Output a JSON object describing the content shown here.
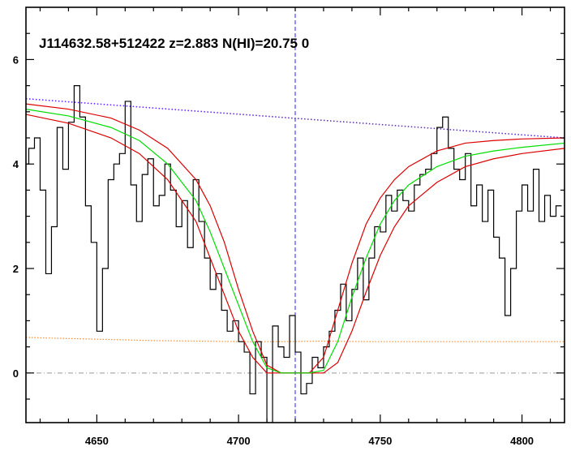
{
  "chart_data": {
    "type": "line",
    "title": "J114632.58+512422 z=2.883 N(HI)=20.75 0",
    "xlabel": "",
    "ylabel": "",
    "xlim": [
      4625,
      4815
    ],
    "ylim": [
      -0.95,
      7.0
    ],
    "x_ticks": [
      4650,
      4700,
      4750,
      4800
    ],
    "x_tick_labels": [
      "4650",
      "4700",
      "4750",
      "4800"
    ],
    "y_ticks": [
      0,
      2,
      4,
      6
    ],
    "y_tick_labels": [
      "0",
      "2",
      "4",
      "6"
    ],
    "grid": false,
    "legend": "none",
    "center_line_x": 4720,
    "colors": {
      "flux": "#000000",
      "model": "#00dd00",
      "model_bounds": "#dd0000",
      "continuum": "#5a1cff",
      "error": "#ff8a2a",
      "zero_line": "#999999",
      "center_line": "#2222ee"
    },
    "series": [
      {
        "name": "",
        "style": "steps",
        "x": [
          4625,
          4627,
          4629,
          4631,
          4633,
          4635,
          4637,
          4639,
          4641,
          4643,
          4645,
          4647,
          4649,
          4651,
          4653,
          4655,
          4657,
          4659,
          4661,
          4663,
          4665,
          4667,
          4669,
          4671,
          4673,
          4675,
          4677,
          4679,
          4681,
          4683,
          4685,
          4687,
          4689,
          4691,
          4693,
          4695,
          4697,
          4699,
          4701,
          4703,
          4705,
          4707,
          4709,
          4711,
          4713,
          4715,
          4717,
          4719,
          4721,
          4723,
          4725,
          4727,
          4729,
          4731,
          4733,
          4735,
          4737,
          4739,
          4741,
          4743,
          4745,
          4747,
          4749,
          4751,
          4753,
          4755,
          4757,
          4759,
          4761,
          4763,
          4765,
          4767,
          4769,
          4771,
          4773,
          4775,
          4777,
          4779,
          4781,
          4783,
          4785,
          4787,
          4789,
          4791,
          4793,
          4795,
          4797,
          4799,
          4801,
          4803,
          4805,
          4807,
          4809,
          4811,
          4813
        ],
        "y": [
          4.0,
          4.3,
          4.5,
          3.5,
          1.9,
          2.8,
          4.7,
          3.9,
          4.8,
          5.5,
          4.9,
          3.2,
          2.5,
          0.8,
          2.0,
          3.7,
          4.0,
          4.2,
          5.2,
          3.6,
          2.9,
          3.8,
          4.1,
          3.2,
          3.4,
          4.0,
          3.5,
          2.8,
          3.3,
          2.4,
          3.7,
          2.9,
          2.2,
          1.6,
          1.9,
          1.2,
          0.8,
          1.0,
          0.6,
          0.4,
          -0.4,
          0.6,
          0.3,
          -1.0,
          0.9,
          0.5,
          0.3,
          1.1,
          0.4,
          -0.4,
          -0.2,
          0.3,
          0.1,
          0.5,
          0.8,
          1.2,
          1.7,
          1.0,
          1.6,
          2.2,
          1.4,
          2.2,
          2.8,
          2.7,
          3.4,
          3.1,
          3.5,
          3.3,
          3.1,
          3.6,
          3.8,
          3.9,
          4.2,
          4.7,
          4.9,
          4.3,
          3.9,
          3.7,
          4.2,
          3.2,
          3.6,
          2.9,
          3.5,
          2.6,
          2.2,
          1.1,
          2.0,
          3.1,
          3.6,
          3.1,
          3.9,
          2.9,
          3.4,
          3.0,
          3.2
        ]
      },
      {
        "name": "",
        "style": "line",
        "x": [
          4625,
          4640,
          4655,
          4665,
          4675,
          4685,
          4690,
          4695,
          4700,
          4705,
          4710,
          4715,
          4720,
          4725,
          4730,
          4735,
          4740,
          4745,
          4750,
          4755,
          4760,
          4770,
          4780,
          4790,
          4800,
          4815
        ],
        "y": [
          5.05,
          4.92,
          4.7,
          4.45,
          4.0,
          3.3,
          2.7,
          2.0,
          1.3,
          0.6,
          0.1,
          0.0,
          0.0,
          0.0,
          0.05,
          0.6,
          1.45,
          2.2,
          2.85,
          3.3,
          3.6,
          3.95,
          4.15,
          4.25,
          4.32,
          4.4
        ]
      },
      {
        "name": "",
        "style": "line",
        "x": [
          4625,
          4640,
          4655,
          4665,
          4675,
          4685,
          4690,
          4695,
          4700,
          4705,
          4710,
          4715,
          4720,
          4725,
          4730,
          4735,
          4740,
          4745,
          4750,
          4755,
          4760,
          4770,
          4780,
          4790,
          4800,
          4815
        ],
        "y": [
          5.15,
          5.05,
          4.88,
          4.65,
          4.3,
          3.7,
          3.2,
          2.5,
          1.6,
          0.8,
          0.15,
          0.0,
          0.0,
          0.0,
          0.3,
          1.2,
          2.1,
          2.85,
          3.35,
          3.7,
          3.95,
          4.25,
          4.4,
          4.45,
          4.48,
          4.5
        ]
      },
      {
        "name": "",
        "style": "line",
        "x": [
          4625,
          4640,
          4655,
          4665,
          4675,
          4685,
          4690,
          4695,
          4700,
          4705,
          4710,
          4715,
          4720,
          4725,
          4730,
          4735,
          4740,
          4745,
          4750,
          4755,
          4760,
          4770,
          4780,
          4790,
          4800,
          4815
        ],
        "y": [
          4.95,
          4.78,
          4.5,
          4.2,
          3.7,
          2.9,
          2.2,
          1.5,
          0.8,
          0.3,
          0.0,
          0.0,
          0.0,
          0.0,
          0.0,
          0.2,
          0.8,
          1.55,
          2.25,
          2.8,
          3.2,
          3.65,
          3.95,
          4.1,
          4.2,
          4.3
        ]
      },
      {
        "name": "",
        "style": "dotted",
        "x": [
          4625,
          4815
        ],
        "y": [
          5.25,
          4.5
        ]
      },
      {
        "name": "",
        "style": "dotted",
        "x": [
          4625,
          4640,
          4655,
          4670,
          4685,
          4700,
          4715,
          4730,
          4745,
          4760,
          4775,
          4790,
          4815
        ],
        "y": [
          0.68,
          0.66,
          0.64,
          0.62,
          0.61,
          0.6,
          0.6,
          0.61,
          0.6,
          0.6,
          0.6,
          0.6,
          0.6
        ]
      }
    ]
  }
}
